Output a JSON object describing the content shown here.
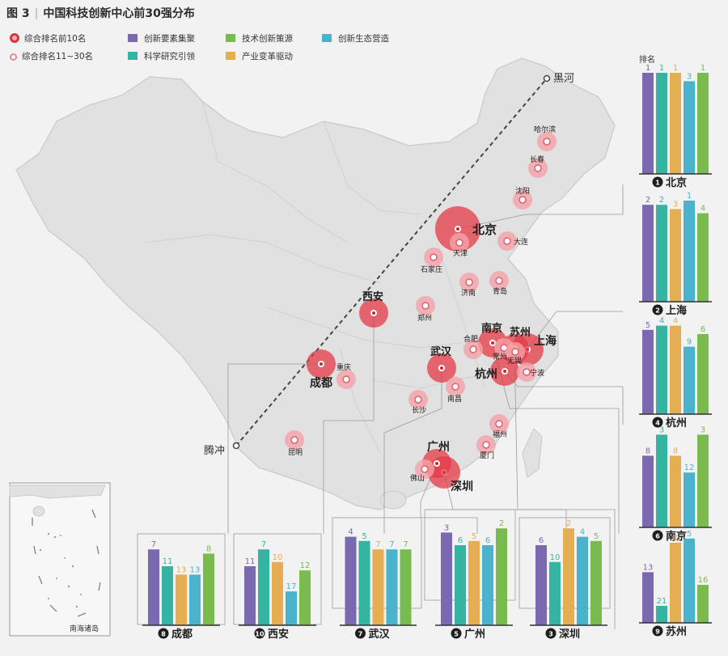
{
  "figure": {
    "label": "图 3",
    "title": "中国科技创新中心前30强分布"
  },
  "legend": {
    "top10": "综合排名前10名",
    "rank11_30": "综合排名11~30名",
    "series": [
      {
        "key": "s1",
        "name": "创新要素集聚",
        "color": "#7a68b0"
      },
      {
        "key": "s2",
        "name": "科学研究引领",
        "color": "#36b4a3"
      },
      {
        "key": "s3",
        "name": "产业变革驱动",
        "color": "#e6ae52"
      },
      {
        "key": "s4",
        "name": "创新生态营造",
        "color": "#4bb2cc"
      },
      {
        "key": "s5",
        "name": "技术创新策源",
        "color": "#79bb4e"
      }
    ]
  },
  "map": {
    "hu_line": {
      "north": "黑河",
      "south": "腾冲"
    },
    "inset_label": "南海诸岛"
  },
  "cities": [
    {
      "name": "北京",
      "tier": "top",
      "size": "xl"
    },
    {
      "name": "上海",
      "tier": "top",
      "size": "l"
    },
    {
      "name": "深圳",
      "tier": "top",
      "size": "l"
    },
    {
      "name": "杭州",
      "tier": "top",
      "size": "m"
    },
    {
      "name": "广州",
      "tier": "top",
      "size": "m"
    },
    {
      "name": "南京",
      "tier": "top",
      "size": "m"
    },
    {
      "name": "武汉",
      "tier": "top",
      "size": "m"
    },
    {
      "name": "成都",
      "tier": "top",
      "size": "m"
    },
    {
      "name": "苏州",
      "tier": "top",
      "size": "m"
    },
    {
      "name": "西安",
      "tier": "top",
      "size": "m"
    },
    {
      "name": "哈尔滨",
      "tier": "other"
    },
    {
      "name": "长春",
      "tier": "other"
    },
    {
      "name": "沈阳",
      "tier": "other"
    },
    {
      "name": "大连",
      "tier": "other"
    },
    {
      "name": "天津",
      "tier": "other"
    },
    {
      "name": "石家庄",
      "tier": "other"
    },
    {
      "name": "济南",
      "tier": "other"
    },
    {
      "name": "青岛",
      "tier": "other"
    },
    {
      "name": "郑州",
      "tier": "other"
    },
    {
      "name": "合肥",
      "tier": "other"
    },
    {
      "name": "常州",
      "tier": "other"
    },
    {
      "name": "无锡",
      "tier": "other"
    },
    {
      "name": "宁波",
      "tier": "other"
    },
    {
      "name": "重庆",
      "tier": "other"
    },
    {
      "name": "长沙",
      "tier": "other"
    },
    {
      "name": "南昌",
      "tier": "other"
    },
    {
      "name": "福州",
      "tier": "other"
    },
    {
      "name": "厦门",
      "tier": "other"
    },
    {
      "name": "昆明",
      "tier": "other"
    },
    {
      "name": "佛山",
      "tier": "other"
    }
  ],
  "chart_data": {
    "type": "bar",
    "title": "中国科技创新中心前30强分布",
    "ylabel": "排名",
    "note": "Bar height inversely reflects rank (rank 1 = tallest); rank labels printed above bars.",
    "series_names": [
      "创新要素集聚",
      "科学研究引领",
      "产业变革驱动",
      "创新生态营造",
      "技术创新策源"
    ],
    "charts": [
      {
        "rank": "1",
        "city": "北京",
        "values": [
          1,
          1,
          1,
          3,
          1
        ]
      },
      {
        "rank": "2",
        "city": "上海",
        "values": [
          2,
          2,
          3,
          1,
          4
        ]
      },
      {
        "rank": "4",
        "city": "杭州",
        "values": [
          5,
          4,
          4,
          9,
          6
        ]
      },
      {
        "rank": "6",
        "city": "南京",
        "values": [
          8,
          3,
          8,
          12,
          3
        ]
      },
      {
        "rank": "9",
        "city": "苏州",
        "values": [
          13,
          21,
          6,
          5,
          16
        ]
      },
      {
        "rank": "8",
        "city": "成都",
        "values": [
          7,
          11,
          13,
          13,
          8
        ]
      },
      {
        "rank": "10",
        "city": "西安",
        "values": [
          11,
          7,
          10,
          17,
          12
        ]
      },
      {
        "rank": "7",
        "city": "武汉",
        "values": [
          4,
          5,
          7,
          7,
          7
        ]
      },
      {
        "rank": "5",
        "city": "广州",
        "values": [
          3,
          6,
          5,
          6,
          2
        ]
      },
      {
        "rank": "3",
        "city": "深圳",
        "values": [
          6,
          10,
          2,
          4,
          5
        ]
      }
    ]
  }
}
